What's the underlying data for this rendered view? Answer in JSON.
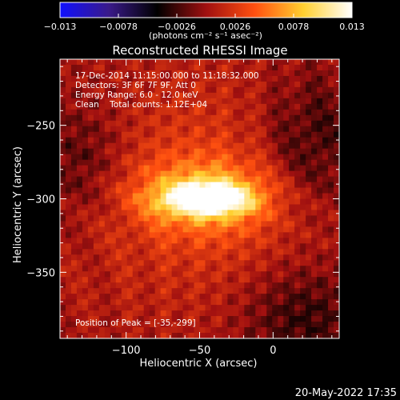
{
  "chart_data": {
    "type": "heatmap",
    "title": "Reconstructed RHESSI Image",
    "xlabel": "Heliocentric X (arcsec)",
    "ylabel": "Heliocentric Y (arcsec)",
    "xlim": [
      -145,
      45
    ],
    "ylim": [
      -395,
      -205
    ],
    "x_ticks": [
      -100,
      -50,
      0
    ],
    "x_tick_labels": [
      "−100",
      "−50",
      "0"
    ],
    "y_ticks": [
      -250,
      -300,
      -350
    ],
    "y_tick_labels": [
      "−250",
      "−300",
      "−350"
    ],
    "annotations": [
      "17-Dec-2014 11:15:00.000 to 11:18:32.000",
      "Detectors: 3F 6F 7F 9F, Att 0",
      "Energy Range: 6.0 - 12.0 keV",
      "Clean    Total counts: 1.12E+04"
    ],
    "peak_label": "Position of Peak = [-35,-299]",
    "peak": [
      -35,
      -299
    ],
    "colorbar": {
      "range": [
        -0.013,
        0.013
      ],
      "tick_labels": [
        "−0.013",
        "−0.0078",
        "−0.0026",
        "0.0026",
        "0.0078",
        "0.013"
      ],
      "unit_label": "(photons cm⁻² s⁻¹ asec⁻²)",
      "colors": [
        "#1010ff",
        "#3a1a8a",
        "#000000",
        "#a01010",
        "#ff5010",
        "#ffd030",
        "#ffffff"
      ]
    },
    "sources": [
      {
        "x": -45,
        "y": -300,
        "sx": 19,
        "sy": 7,
        "amp": 0.0125
      },
      {
        "x": -45,
        "y": -298,
        "sx": 35,
        "sy": 17,
        "amp": 0.006
      },
      {
        "x": -45,
        "y": -295,
        "sx": 70,
        "sy": 60,
        "amp": 0.003
      }
    ],
    "negative_regions": [
      {
        "x": -130,
        "y": -275,
        "sx": 22,
        "sy": 30,
        "amp": -0.003
      },
      {
        "x": 25,
        "y": -265,
        "sx": 25,
        "sy": 35,
        "amp": -0.004
      },
      {
        "x": 20,
        "y": -380,
        "sx": 30,
        "sy": 25,
        "amp": -0.0035
      }
    ]
  },
  "footer": {
    "timestamp": "20-May-2022 17:35"
  }
}
